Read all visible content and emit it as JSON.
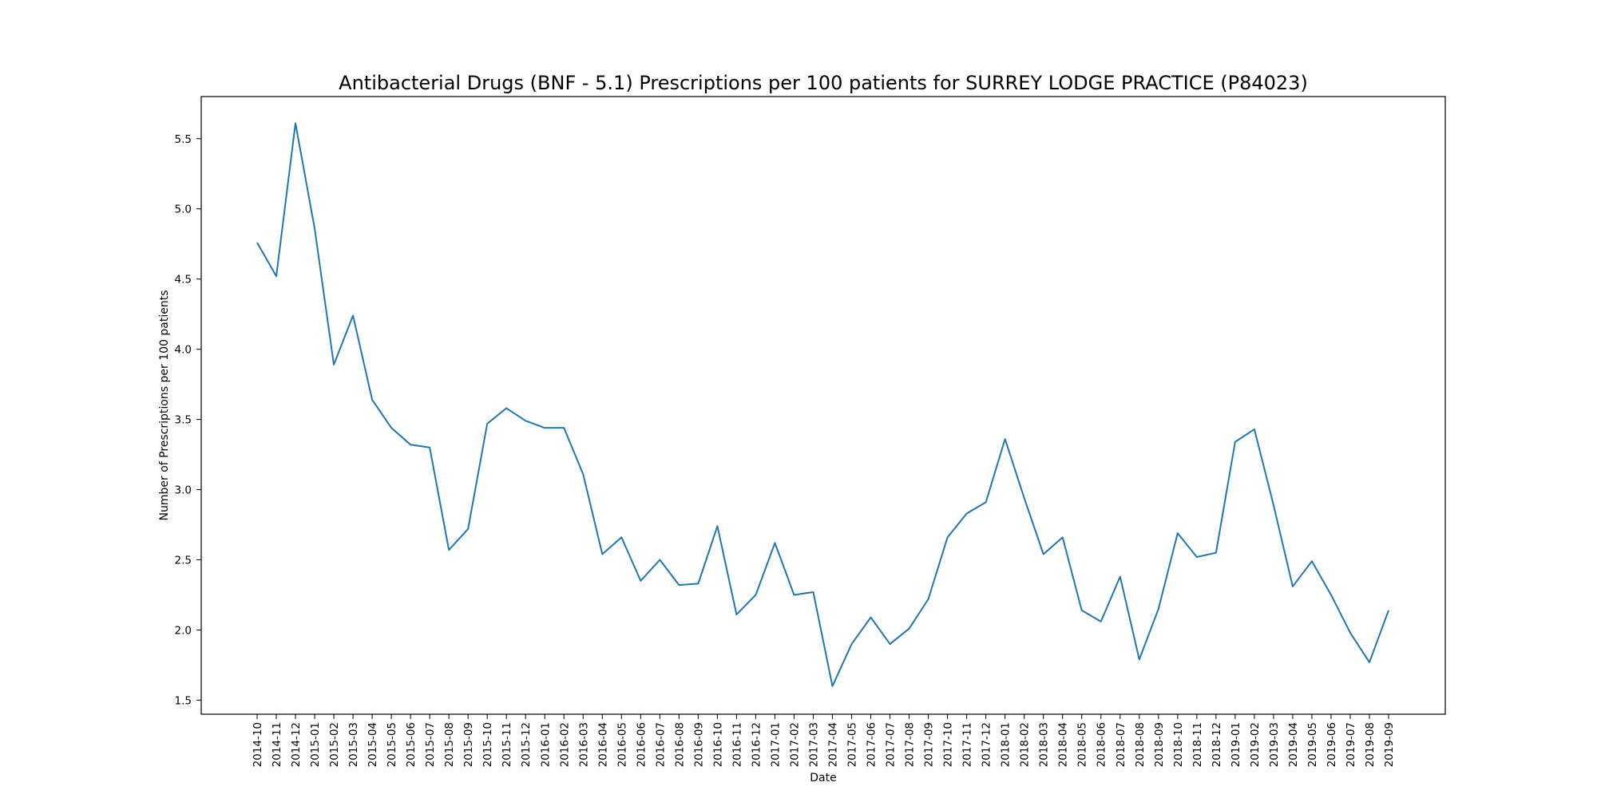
{
  "chart_data": {
    "type": "line",
    "title": "Antibacterial Drugs (BNF - 5.1) Prescriptions per 100 patients for SURREY LODGE PRACTICE (P84023)",
    "xlabel": "Date",
    "ylabel": "Number of Prescriptions per 100 patients",
    "ylim": [
      1.4,
      5.8
    ],
    "yticks": [
      "1.5",
      "2.0",
      "2.5",
      "3.0",
      "3.5",
      "4.0",
      "4.5",
      "5.0",
      "5.5"
    ],
    "grid": false,
    "legend": "none",
    "line_color": "#1f77b4",
    "categories": [
      "2014-10",
      "2014-11",
      "2014-12",
      "2015-01",
      "2015-02",
      "2015-03",
      "2015-04",
      "2015-05",
      "2015-06",
      "2015-07",
      "2015-08",
      "2015-09",
      "2015-10",
      "2015-11",
      "2015-12",
      "2016-01",
      "2016-02",
      "2016-03",
      "2016-04",
      "2016-05",
      "2016-06",
      "2016-07",
      "2016-08",
      "2016-09",
      "2016-10",
      "2016-11",
      "2016-12",
      "2017-01",
      "2017-02",
      "2017-03",
      "2017-04",
      "2017-05",
      "2017-06",
      "2017-07",
      "2017-08",
      "2017-09",
      "2017-10",
      "2017-11",
      "2017-12",
      "2018-01",
      "2018-02",
      "2018-03",
      "2018-04",
      "2018-05",
      "2018-06",
      "2018-07",
      "2018-08",
      "2018-09",
      "2018-10",
      "2018-11",
      "2018-12",
      "2019-01",
      "2019-02",
      "2019-03",
      "2019-04",
      "2019-05",
      "2019-06",
      "2019-07",
      "2019-08",
      "2019-09"
    ],
    "values": [
      4.76,
      4.52,
      5.61,
      4.86,
      3.89,
      4.24,
      3.64,
      3.44,
      3.32,
      3.3,
      2.57,
      2.72,
      3.47,
      3.58,
      3.49,
      3.44,
      3.44,
      3.11,
      2.54,
      2.66,
      2.35,
      2.5,
      2.32,
      2.33,
      2.74,
      2.11,
      2.25,
      2.62,
      2.25,
      2.27,
      1.6,
      1.9,
      2.09,
      1.9,
      2.01,
      2.22,
      2.66,
      2.83,
      2.91,
      3.36,
      2.94,
      2.54,
      2.66,
      2.14,
      2.06,
      2.38,
      1.79,
      2.15,
      2.69,
      2.52,
      2.55,
      3.34,
      3.43,
      2.89,
      2.31,
      2.49,
      2.25,
      1.98,
      1.77,
      2.14
    ]
  }
}
